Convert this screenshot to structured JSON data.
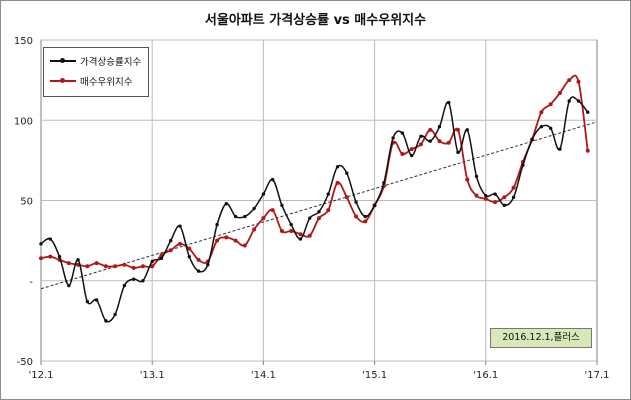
{
  "chart_data": {
    "type": "line",
    "title": "서울아파트 가격상승률 vs 매수우위지수",
    "x_tick_labels": [
      "'12.1",
      "'13.1",
      "'14.1",
      "'15.1",
      "'16.1",
      "'17.1"
    ],
    "x_ticks_months": [
      0,
      12,
      24,
      36,
      48,
      60
    ],
    "y_tick_labels": [
      "150",
      "100",
      "50",
      "-",
      "-50"
    ],
    "y_ticks": [
      150,
      100,
      50,
      0,
      -50
    ],
    "ylim": [
      -50,
      150
    ],
    "xlim_months": [
      0,
      60
    ],
    "grid": true,
    "legend_position": "top-left",
    "source_note": "2016.12.1,플러스",
    "trendline": {
      "style": "dashed",
      "from": [
        0,
        -5
      ],
      "to": [
        60,
        99
      ]
    },
    "series": [
      {
        "name": "가격상승률지수",
        "color": "#111111",
        "x": [
          0,
          1,
          2,
          3,
          4,
          5,
          6,
          7,
          8,
          9,
          10,
          11,
          12,
          13,
          14,
          15,
          16,
          17,
          18,
          19,
          20,
          21,
          22,
          23,
          24,
          25,
          26,
          27,
          28,
          29,
          30,
          31,
          32,
          33,
          34,
          35,
          36,
          37,
          38,
          39,
          40,
          41,
          42,
          43,
          44,
          45,
          46,
          47,
          48,
          49,
          50,
          51,
          52,
          53,
          54,
          55,
          56,
          57,
          58,
          59
        ],
        "values": [
          23,
          26,
          15,
          -3,
          13,
          -13,
          -12,
          -25,
          -21,
          -3,
          1,
          0,
          12,
          14,
          25,
          34,
          15,
          6,
          10,
          35,
          48,
          40,
          40,
          45,
          54,
          63,
          47,
          35,
          26,
          39,
          43,
          54,
          71,
          67,
          49,
          40,
          47,
          61,
          89,
          92,
          78,
          90,
          87,
          96,
          111,
          80,
          94,
          65,
          53,
          54,
          47,
          52,
          72,
          88,
          96,
          95,
          82,
          112,
          112,
          105
        ]
      },
      {
        "name": "매수우위지수",
        "color": "#b01818",
        "x": [
          0,
          1,
          2,
          3,
          4,
          5,
          6,
          7,
          8,
          9,
          10,
          11,
          12,
          13,
          14,
          15,
          16,
          17,
          18,
          19,
          20,
          21,
          22,
          23,
          24,
          25,
          26,
          27,
          28,
          29,
          30,
          31,
          32,
          33,
          34,
          35,
          36,
          37,
          38,
          39,
          40,
          41,
          42,
          43,
          44,
          45,
          46,
          47,
          48,
          49,
          50,
          51,
          52,
          53,
          54,
          55,
          56,
          57,
          58,
          59
        ],
        "values": [
          14,
          15,
          13,
          11,
          10,
          9,
          11,
          9,
          9,
          10,
          8,
          9,
          9,
          16,
          19,
          23,
          20,
          13,
          12,
          25,
          27,
          25,
          22,
          32,
          39,
          44,
          31,
          31,
          29,
          28,
          39,
          44,
          61,
          52,
          40,
          37,
          47,
          59,
          86,
          79,
          82,
          85,
          94,
          87,
          86,
          94,
          63,
          53,
          51,
          49,
          52,
          58,
          74,
          88,
          105,
          110,
          117,
          125,
          124,
          81
        ]
      }
    ]
  }
}
